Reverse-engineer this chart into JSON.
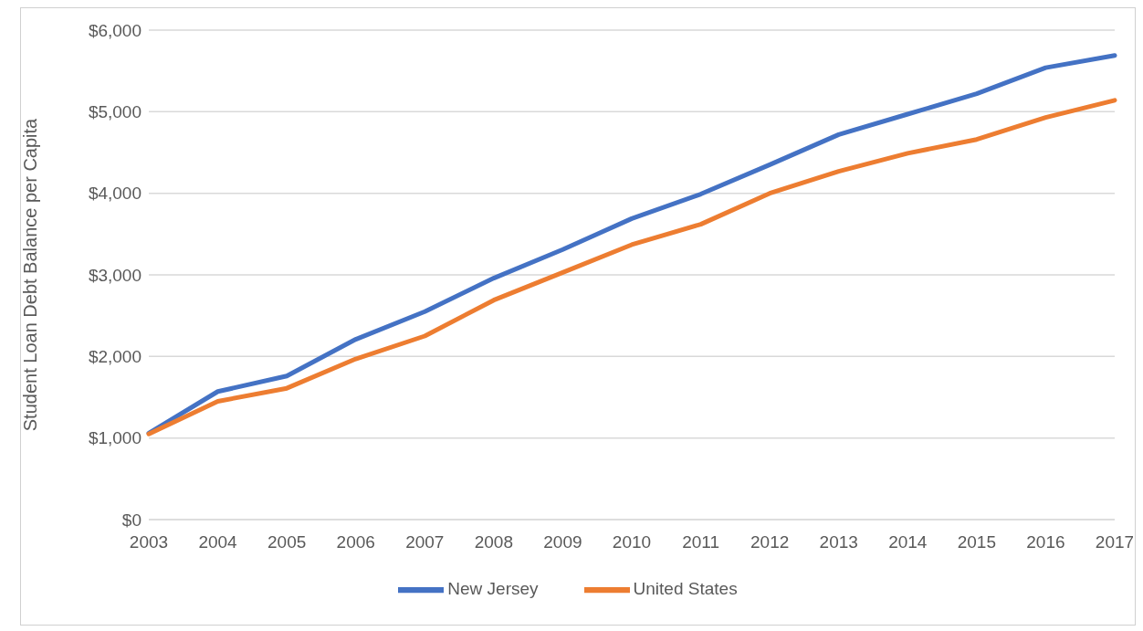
{
  "chart_data": {
    "type": "line",
    "ylabel": "Student Loan Debt Balance per Capita",
    "categories": [
      "2003",
      "2004",
      "2005",
      "2006",
      "2007",
      "2008",
      "2009",
      "2010",
      "2011",
      "2012",
      "2013",
      "2014",
      "2015",
      "2016",
      "2017"
    ],
    "series": [
      {
        "name": "New Jersey",
        "color": "#4472c4",
        "values": [
          1060,
          1570,
          1760,
          2210,
          2550,
          2960,
          3310,
          3690,
          3990,
          4350,
          4720,
          4970,
          5220,
          5540,
          5690
        ]
      },
      {
        "name": "United States",
        "color": "#ed7d31",
        "values": [
          1050,
          1450,
          1610,
          1970,
          2250,
          2690,
          3030,
          3370,
          3620,
          4000,
          4270,
          4490,
          4660,
          4930,
          5140
        ]
      }
    ],
    "ylim": [
      0,
      6000
    ],
    "yticks": [
      {
        "value": 0,
        "label": "$0"
      },
      {
        "value": 1000,
        "label": "$1,000"
      },
      {
        "value": 2000,
        "label": "$2,000"
      },
      {
        "value": 3000,
        "label": "$3,000"
      },
      {
        "value": 4000,
        "label": "$4,000"
      },
      {
        "value": 5000,
        "label": "$5,000"
      },
      {
        "value": 6000,
        "label": "$6,000"
      }
    ],
    "grid": "y",
    "legend": "bottom",
    "marker": "none",
    "line_style": "solid"
  }
}
